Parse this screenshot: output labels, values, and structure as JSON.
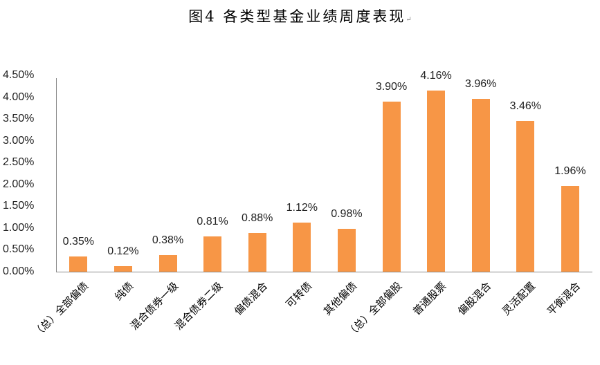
{
  "title": "图4 各类型基金业绩周度表现",
  "title_mark": "↵",
  "y_ticks": [
    "4.50%",
    "4.00%",
    "3.50%",
    "3.00%",
    "2.50%",
    "2.00%",
    "1.50%",
    "1.00%",
    "0.50%",
    "0.00%"
  ],
  "colors": {
    "bar": "#f79646",
    "axis": "#888888"
  },
  "chart_data": {
    "type": "bar",
    "title": "图4 各类型基金业绩周度表现",
    "xlabel": "",
    "ylabel": "",
    "ylim": [
      0,
      0.045
    ],
    "y_tick_format": "percent_2dp",
    "grid": false,
    "legend": null,
    "categories": [
      "（总）全部偏债",
      "纯债",
      "混合债券一级",
      "混合债券二级",
      "偏债混合",
      "可转债",
      "其他偏债",
      "（总）全部偏股",
      "普通股票",
      "偏股混合",
      "灵活配置",
      "平衡混合"
    ],
    "values": [
      0.35,
      0.12,
      0.38,
      0.81,
      0.88,
      1.12,
      0.98,
      3.9,
      4.16,
      3.96,
      3.46,
      1.96
    ],
    "value_labels": [
      "0.35%",
      "0.12%",
      "0.38%",
      "0.81%",
      "0.88%",
      "1.12%",
      "0.98%",
      "3.90%",
      "4.16%",
      "3.96%",
      "3.46%",
      "1.96%"
    ],
    "unit": "%"
  }
}
